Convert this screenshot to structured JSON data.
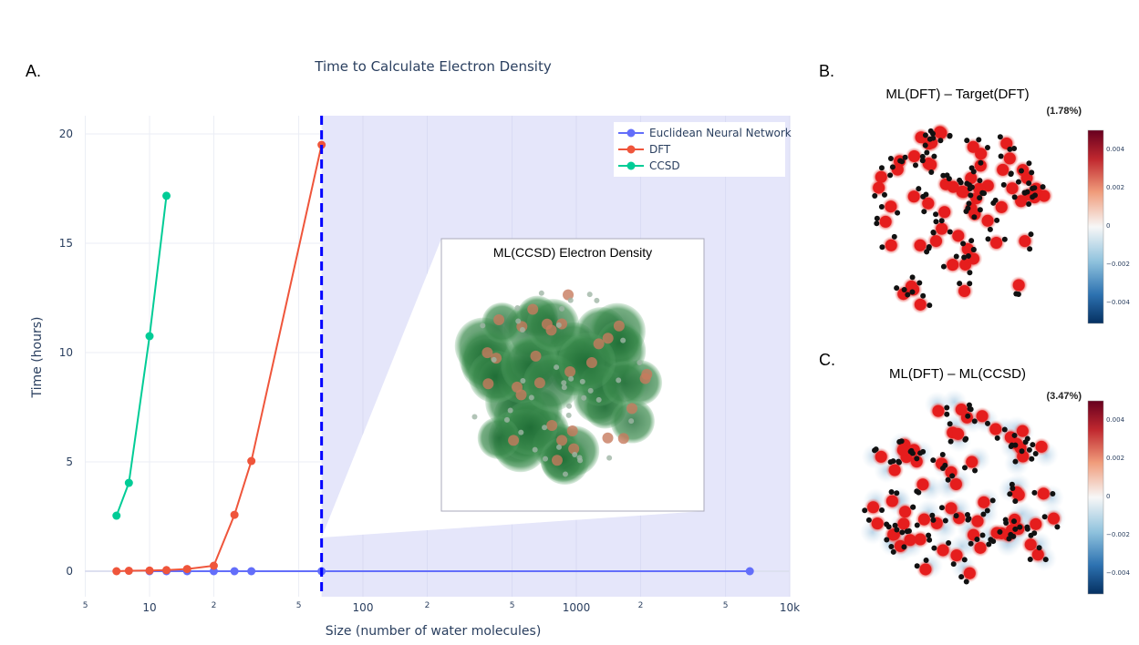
{
  "panels": {
    "a_label": "A.",
    "b_label": "B.",
    "c_label": "C."
  },
  "chart_data": {
    "type": "line",
    "title": "Time to Calculate Electron Density",
    "xlabel": "Size (number of water molecules)",
    "ylabel": "Time (hours)",
    "x_scale": "log",
    "xlim": [
      4.5,
      10000
    ],
    "ylim": [
      -1.2,
      21
    ],
    "x_tick_labels": [
      {
        "v": 5,
        "t": "5",
        "minor": true
      },
      {
        "v": 10,
        "t": "10"
      },
      {
        "v": 20,
        "t": "2",
        "minor": true
      },
      {
        "v": 50,
        "t": "5",
        "minor": true
      },
      {
        "v": 100,
        "t": "100"
      },
      {
        "v": 200,
        "t": "2",
        "minor": true
      },
      {
        "v": 500,
        "t": "5",
        "minor": true
      },
      {
        "v": 1000,
        "t": "1000"
      },
      {
        "v": 2000,
        "t": "2",
        "minor": true
      },
      {
        "v": 5000,
        "t": "5",
        "minor": true
      },
      {
        "v": 10000,
        "t": "10k"
      }
    ],
    "y_ticks": [
      0,
      5,
      10,
      15,
      20
    ],
    "grid": true,
    "legend_position": "top-right",
    "series": [
      {
        "name": "Euclidean Neural Network",
        "color": "#636efa",
        "x": [
          10,
          12,
          15,
          20,
          25,
          30,
          64,
          6500
        ],
        "y": [
          0,
          0,
          0,
          0,
          0,
          0,
          0,
          0
        ]
      },
      {
        "name": "DFT",
        "color": "#ef553b",
        "x": [
          7,
          8,
          10,
          12,
          15,
          20,
          25,
          30,
          64
        ],
        "y": [
          0,
          0.02,
          0.03,
          0.05,
          0.1,
          0.25,
          2.58,
          5.04,
          19.5
        ]
      },
      {
        "name": "CCSD",
        "color": "#00cc96",
        "x": [
          7,
          8,
          10,
          12
        ],
        "y": [
          2.54,
          4.04,
          10.75,
          17.17
        ]
      }
    ],
    "threshold_x": 64,
    "shaded_region_color": "#e5e6fa",
    "inset_title": "ML(CCSD) Electron Density"
  },
  "panel_b": {
    "title": "ML(DFT) – Target(DFT)",
    "error": "(1.78%)",
    "colorbar_ticks": [
      "0.004",
      "0.002",
      "0",
      "−0.002",
      "−0.004"
    ]
  },
  "panel_c": {
    "title": "ML(DFT) – ML(CCSD)",
    "error": "(3.47%)",
    "colorbar_ticks": [
      "0.004",
      "0.002",
      "0",
      "−0.002",
      "−0.004"
    ]
  }
}
